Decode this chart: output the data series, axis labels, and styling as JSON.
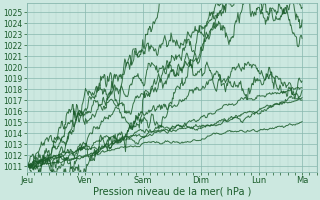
{
  "title": "Pression niveau de la mer( hPa )",
  "bg_color": "#cce8e0",
  "grid_minor_color": "#b0d4cc",
  "grid_major_color": "#88b8ae",
  "line_color": "#1a5c2a",
  "ylim": [
    1010.5,
    1025.8
  ],
  "yticks": [
    1011,
    1012,
    1013,
    1014,
    1015,
    1016,
    1017,
    1018,
    1019,
    1020,
    1021,
    1022,
    1023,
    1024,
    1025
  ],
  "xtick_labels": [
    "Jeu",
    "Ven",
    "Sam",
    "Dim",
    "Lun",
    "Ma"
  ],
  "xtick_positions": [
    0,
    24,
    48,
    72,
    96,
    114
  ],
  "xlim": [
    0,
    120
  ],
  "xlabel": "Pression niveau de la mer( hPa )"
}
